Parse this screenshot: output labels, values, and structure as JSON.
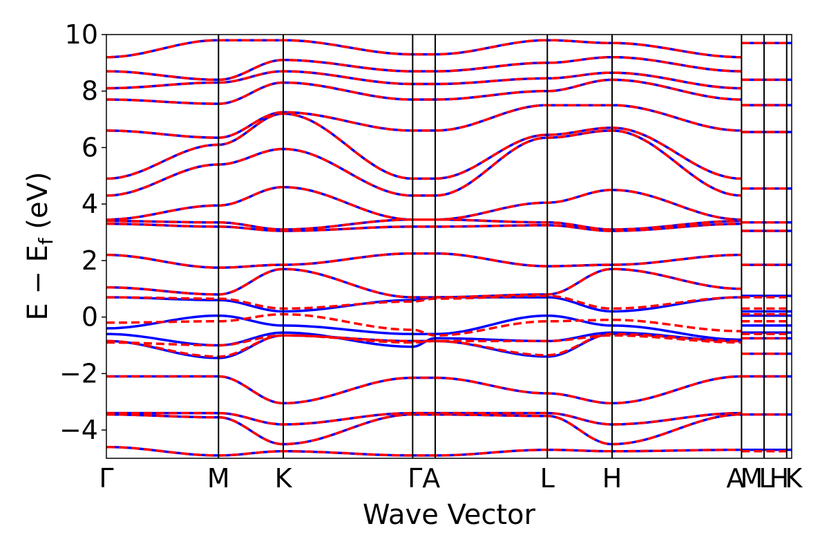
{
  "chart_data": {
    "type": "line",
    "xlabel": "Wave Vector",
    "ylabel_parts": {
      "main": "E − E",
      "sub": "f",
      "unit": " (eV)"
    },
    "ylim": [
      -5,
      10
    ],
    "yticks": [
      -4,
      -2,
      0,
      2,
      4,
      6,
      8,
      10
    ],
    "ytick_labels": [
      "−4",
      "−2",
      "0",
      "2",
      "4",
      "6",
      "8",
      "10"
    ],
    "xlim": [
      0,
      1
    ],
    "kpoints": [
      {
        "label": "Γ",
        "x": 0.0
      },
      {
        "label": "M",
        "x": 0.1636
      },
      {
        "label": "K",
        "x": 0.2581
      },
      {
        "label": "Γ",
        "x": 0.4469
      },
      {
        "label": "A",
        "x": 0.4798
      },
      {
        "label": "L",
        "x": 0.6434
      },
      {
        "label": "H",
        "x": 0.7379
      },
      {
        "label": "A",
        "x": 0.9268
      },
      {
        "label": "L",
        "x": 0.9597
      },
      {
        "label": "M",
        "x": 0.9597
      },
      {
        "label": "H",
        "x": 0.9927
      },
      {
        "label": "K",
        "x": 0.9927
      }
    ],
    "kpoint_label_text": [
      "Γ",
      "M",
      "K",
      "ΓA",
      "L",
      "H",
      "AMLHK"
    ],
    "colors": {
      "spin_up": "#0000ff",
      "spin_down": "#ff0000",
      "grid": "#000000"
    },
    "series": [
      {
        "name": "",
        "style": "solid",
        "color": "#0000ff"
      },
      {
        "name": "",
        "style": "dashed",
        "color": "#ff0000"
      }
    ],
    "bands_at_kpoints": {
      "x": [
        0.0,
        0.1636,
        0.2581,
        0.4469,
        0.4798,
        0.6434,
        0.7379,
        0.9268
      ],
      "solid_bands": [
        [
          -4.6,
          -4.9,
          -4.75,
          -4.9,
          -4.9,
          -4.7,
          -4.75,
          -4.7
        ],
        [
          -3.45,
          -3.55,
          -4.5,
          -3.45,
          -3.45,
          -3.5,
          -4.5,
          -3.45
        ],
        [
          -3.4,
          -3.4,
          -3.8,
          -3.4,
          -3.4,
          -3.4,
          -3.8,
          -3.4
        ],
        [
          -2.1,
          -2.1,
          -3.05,
          -2.15,
          -2.15,
          -2.7,
          -3.05,
          -2.1
        ],
        [
          -0.85,
          -1.45,
          -0.65,
          -0.85,
          -0.85,
          -1.4,
          -0.6,
          -0.85
        ],
        [
          -0.6,
          -1.0,
          -0.55,
          -1.05,
          -0.75,
          -0.85,
          -0.55,
          -0.85
        ],
        [
          -0.4,
          0.05,
          -0.3,
          -0.6,
          -0.6,
          0.05,
          -0.3,
          -0.8
        ],
        [
          0.7,
          0.6,
          0.2,
          0.6,
          0.7,
          0.7,
          0.2,
          0.7
        ],
        [
          1.05,
          0.8,
          1.7,
          0.7,
          0.7,
          0.8,
          1.7,
          1.0
        ],
        [
          2.2,
          1.75,
          1.85,
          2.25,
          2.25,
          1.8,
          1.85,
          2.2
        ],
        [
          3.3,
          3.2,
          3.05,
          3.2,
          3.2,
          3.25,
          3.05,
          3.3
        ],
        [
          3.4,
          3.35,
          3.1,
          3.45,
          3.45,
          3.35,
          3.1,
          3.4
        ],
        [
          3.45,
          3.95,
          4.6,
          3.45,
          3.45,
          4.05,
          4.5,
          3.45
        ],
        [
          4.3,
          5.4,
          5.95,
          4.3,
          4.3,
          6.35,
          6.6,
          4.3
        ],
        [
          4.9,
          6.1,
          7.2,
          4.9,
          4.9,
          6.45,
          6.7,
          4.9
        ],
        [
          6.6,
          6.35,
          7.25,
          6.6,
          6.6,
          7.5,
          7.5,
          6.6
        ],
        [
          7.7,
          7.55,
          8.3,
          7.7,
          7.7,
          8.0,
          8.4,
          7.7
        ],
        [
          8.1,
          8.3,
          8.7,
          8.25,
          8.25,
          8.45,
          8.65,
          8.1
        ],
        [
          8.7,
          8.4,
          9.1,
          8.7,
          8.7,
          9.0,
          9.2,
          8.7
        ],
        [
          9.2,
          9.8,
          9.8,
          9.3,
          9.3,
          9.8,
          9.7,
          9.2
        ]
      ],
      "dashed_offsets": [
        [
          0.0,
          0.0,
          0.0,
          0.0,
          0.0,
          0.0,
          0.0,
          0.0
        ],
        [
          0.0,
          0.0,
          0.0,
          0.0,
          0.0,
          0.0,
          0.0,
          0.0
        ],
        [
          0.0,
          0.0,
          0.0,
          0.0,
          0.0,
          0.0,
          0.0,
          0.0
        ],
        [
          0.0,
          0.0,
          0.0,
          0.0,
          0.0,
          0.0,
          0.0,
          0.0
        ],
        [
          0.0,
          0.05,
          0.0,
          0.0,
          0.0,
          0.05,
          0.0,
          0.0
        ],
        [
          -0.3,
          0.0,
          -0.1,
          0.15,
          -0.1,
          0.0,
          -0.1,
          -0.05
        ],
        [
          0.2,
          -0.2,
          0.4,
          0.15,
          -0.05,
          -0.2,
          0.2,
          0.3
        ],
        [
          0.0,
          0.05,
          0.1,
          -0.05,
          -0.05,
          0.05,
          0.1,
          0.0
        ],
        [
          0.0,
          0.0,
          0.0,
          0.0,
          0.0,
          0.0,
          0.0,
          0.0
        ],
        [
          0.0,
          0.0,
          0.0,
          0.0,
          0.0,
          0.0,
          0.0,
          0.0
        ],
        [
          0.0,
          0.0,
          0.0,
          0.0,
          0.0,
          0.0,
          0.0,
          0.0
        ],
        [
          0.0,
          0.0,
          0.0,
          0.0,
          0.0,
          0.0,
          0.0,
          0.0
        ],
        [
          0.0,
          0.0,
          0.0,
          0.0,
          0.0,
          0.0,
          0.0,
          0.0
        ],
        [
          0.0,
          0.0,
          0.0,
          0.0,
          0.0,
          0.0,
          0.0,
          0.0
        ],
        [
          0.0,
          0.0,
          0.0,
          0.0,
          0.0,
          0.0,
          0.0,
          0.0
        ],
        [
          0.0,
          0.0,
          0.0,
          0.0,
          0.0,
          0.0,
          0.0,
          0.0
        ],
        [
          0.0,
          0.0,
          0.0,
          0.0,
          0.0,
          0.0,
          0.0,
          0.0
        ],
        [
          0.0,
          0.0,
          0.0,
          0.0,
          0.0,
          0.0,
          0.0,
          0.0
        ],
        [
          0.0,
          0.0,
          0.0,
          0.0,
          0.0,
          0.0,
          0.0,
          0.0
        ],
        [
          0.0,
          0.0,
          0.0,
          0.0,
          0.0,
          0.0,
          0.0,
          0.0
        ]
      ]
    },
    "flat_segment_bands": {
      "x_range": [
        0.9268,
        1.0
      ],
      "solid_levels": [
        -4.7,
        -3.45,
        -2.1,
        -1.3,
        -0.75,
        -0.55,
        -0.3,
        0.05,
        0.2,
        0.75,
        1.85,
        3.05,
        3.35,
        4.55,
        6.55,
        7.5,
        8.4,
        9.7
      ],
      "dashed_levels": [
        -4.75,
        -3.45,
        -2.1,
        -1.3,
        -0.75,
        -0.6,
        -0.15,
        0.1,
        0.3,
        0.7,
        1.85,
        3.05,
        3.35,
        4.55,
        6.55,
        7.5,
        8.4,
        9.7
      ]
    }
  }
}
